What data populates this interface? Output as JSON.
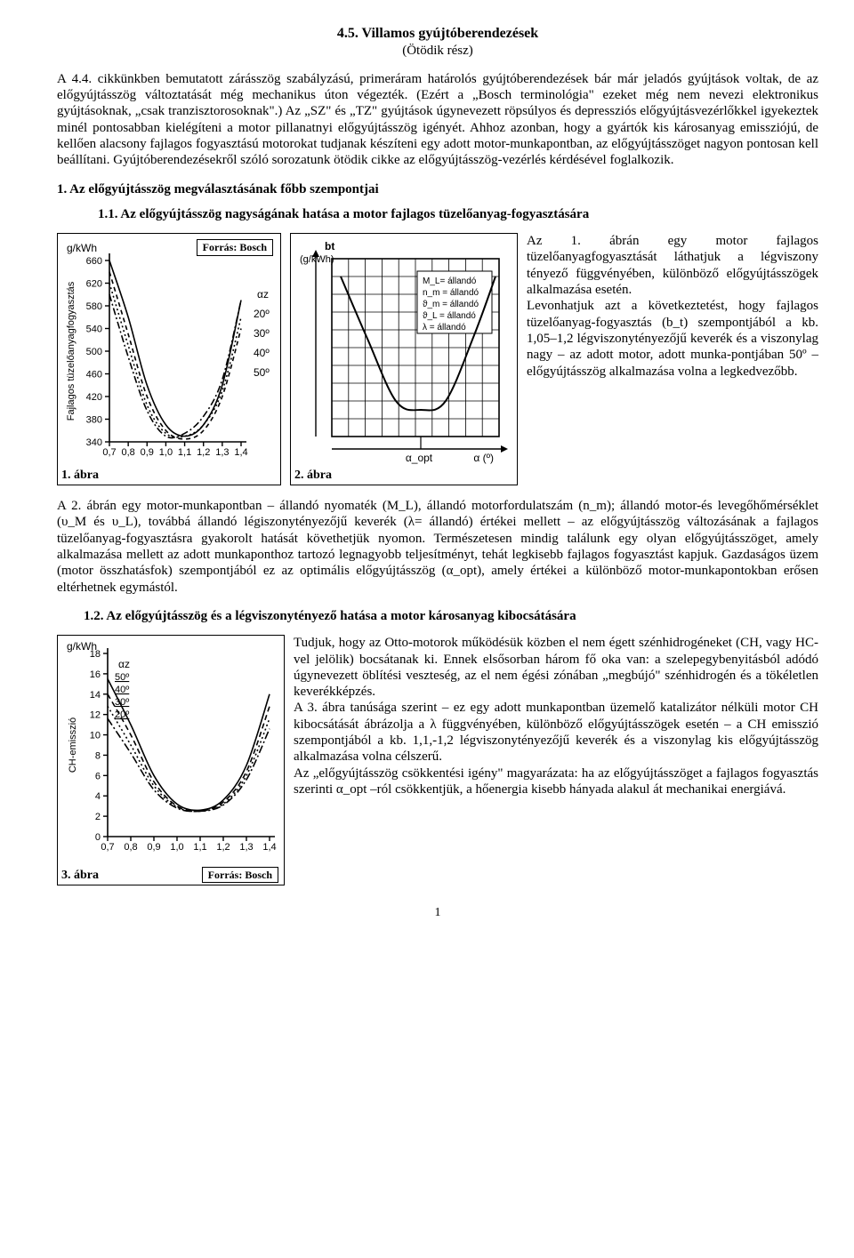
{
  "title": "4.5. Villamos gyújtóberendezések",
  "subtitle": "(Ötödik rész)",
  "intro": "A 4.4. cikkünkben bemutatott zárásszög szabályzású, primeráram határolós gyújtóberendezések bár már jeladós gyújtások voltak, de az előgyújtásszög változtatását még mechanikus úton végezték. (Ezért a „Bosch terminológia\" ezeket még nem nevezi elektronikus gyújtásoknak, „csak tranzisztorosoknak\".) Az „SZ\" és „TZ\" gyújtások úgynevezett röpsúlyos és depressziós előgyújtásvezérlőkkel igyekeztek minél pontosabban kielégíteni a motor pillanatnyi előgyújtásszög igényét. Ahhoz azonban, hogy a gyártók kis károsanyag emissziójú, de kellően alacsony fajlagos fogyasztású motorokat tudjanak készíteni egy adott motor-munkapontban, az előgyújtásszöget nagyon pontosan kell beállítani. Gyújtóberendezésekről szóló sorozatunk ötödik cikke az előgyújtásszög-vezérlés kérdésével foglalkozik.",
  "h1": "1. Az előgyújtásszög megválasztásának főbb szempontjai",
  "h1_1": "1.1. Az előgyújtásszög nagyságának hatása a motor fajlagos tüzelőanyag-fogyasztására",
  "fig1": {
    "label": "1. ábra",
    "source": "Forrás: Bosch",
    "y_unit": "g/kWh",
    "y_axis_label": "Fajlagos tüzelőanyagfogyasztás",
    "alpha_label": "αz",
    "xlim": [
      0.7,
      1.4
    ],
    "xticks": [
      "0,7",
      "0,8",
      "0,9",
      "1,0",
      "1,1",
      "1,2",
      "1,3",
      "1,4"
    ],
    "yticks": [
      340,
      380,
      420,
      460,
      500,
      540,
      580,
      620,
      660
    ],
    "curves": {
      "20": [
        660,
        560,
        440,
        370,
        350,
        370,
        440,
        590
      ],
      "30": [
        640,
        530,
        420,
        360,
        345,
        360,
        420,
        540
      ],
      "40": [
        620,
        510,
        405,
        355,
        350,
        370,
        430,
        560
      ],
      "50": [
        600,
        490,
        395,
        350,
        355,
        385,
        450,
        590
      ]
    },
    "curve_labels": [
      "20º",
      "30º",
      "40º",
      "50º"
    ]
  },
  "fig2": {
    "label": "2. ábra",
    "y_unit": "bt",
    "y_unit2": "(g/kWh)",
    "box_lines": [
      "M_L= állandó",
      "n_m = állandó",
      "ϑ_m = állandó",
      "ϑ_L = állandó",
      "λ = állandó"
    ],
    "x_label_left": "α_opt",
    "x_label_right": "α  (º)"
  },
  "right1": "Az 1. ábrán egy motor fajlagos tüzelőanyagfogyasztását láthatjuk a légviszony tényező függvényében, különböző előgyújtásszögek alkalmazása esetén.\nLevonhatjuk azt a következtetést, hogy fajlagos tüzelőanyag-fogyasztás (b_t) szempontjából a kb. 1,05–1,2       légviszonytényezőjű keverék és a viszonylag nagy – az adott    motor,    adott    munka-pontjában 50º – előgyújtásszög alkalmazása volna a legkedvezőbb.",
  "para2": "A 2. ábrán egy motor-munkapontban – állandó nyomaték (M_L), állandó motorfordulatszám (n_m); állandó motor-és levegőhőmérséklet (υ_M és υ_L), továbbá állandó légiszonytényezőjű keverék (λ= állandó) értékei mellett – az előgyújtásszög változásának a fajlagos tüzelőanyag-fogyasztásra gyakorolt hatását követhetjük nyomon. Természetesen mindig találunk egy olyan előgyújtásszöget, amely alkalmazása mellett az adott munkaponthoz tartozó legnagyobb teljesítményt, tehát legkisebb fajlagos fogyasztást kapjuk. Gazdaságos üzem (motor összhatásfok) szempontjából ez az optimális előgyújtásszög (α_opt), amely értékei a különböző motor-munkapontokban erősen eltérhetnek egymástól.",
  "h1_2": "1.2. Az előgyújtásszög és a légviszonytényező hatása a motor károsanyag kibocsátására",
  "fig3": {
    "label": "3. ábra",
    "source": "Forrás: Bosch",
    "y_unit": "g/kWh",
    "y_axis_label": "CH-emisszió",
    "alpha_label": "αz",
    "xlim": [
      0.7,
      1.4
    ],
    "xticks": [
      "0,7",
      "0,8",
      "0,9",
      "1,0",
      "1,1",
      "1,2",
      "1,3",
      "1,4"
    ],
    "yticks": [
      0,
      2,
      4,
      6,
      8,
      10,
      12,
      14,
      16,
      18
    ],
    "curves": {
      "50": [
        15.5,
        11.0,
        6.0,
        3.2,
        2.6,
        3.6,
        7.0,
        14.0
      ],
      "40": [
        14.0,
        10.0,
        5.4,
        3.0,
        2.5,
        3.4,
        6.4,
        12.8
      ],
      "30": [
        12.8,
        9.0,
        5.0,
        2.9,
        2.5,
        3.2,
        6.0,
        11.6
      ],
      "20": [
        11.6,
        8.2,
        4.6,
        2.8,
        2.5,
        3.1,
        5.6,
        10.6
      ]
    },
    "curve_labels_left": [
      "50º",
      "40º",
      "30º",
      "20º"
    ]
  },
  "right3": "Tudjuk, hogy az Otto-motorok működésük közben el nem égett szénhidrogéneket (CH, vagy HC-vel jelölik) bocsátanak ki. Ennek elsősorban három fő oka van: a szelepegybenyitásból adódó úgynevezett öblítési veszteség, az el nem égési zónában „megbújó\" szénhidrogén és a tökéletlen keverékképzés.\nA 3. ábra tanúsága szerint – ez egy adott munkapontban üzemelő katalizátor nélküli motor CH kibocsátását ábrázolja a λ függvényében, különböző előgyújtásszögek esetén – a CH emisszió szempontjából a kb. 1,1,-1,2 légviszonytényezőjű keverék és a viszonylag kis előgyújtásszög alkalmazása volna célszerű.\nAz „előgyújtásszög csökkentési igény\" magyarázata: ha az előgyújtásszöget a fajlagos fogyasztás szerinti α_opt –ról csökkentjük, a hőenergia kisebb hányada alakul át mechanikai energiává.",
  "page": "1"
}
